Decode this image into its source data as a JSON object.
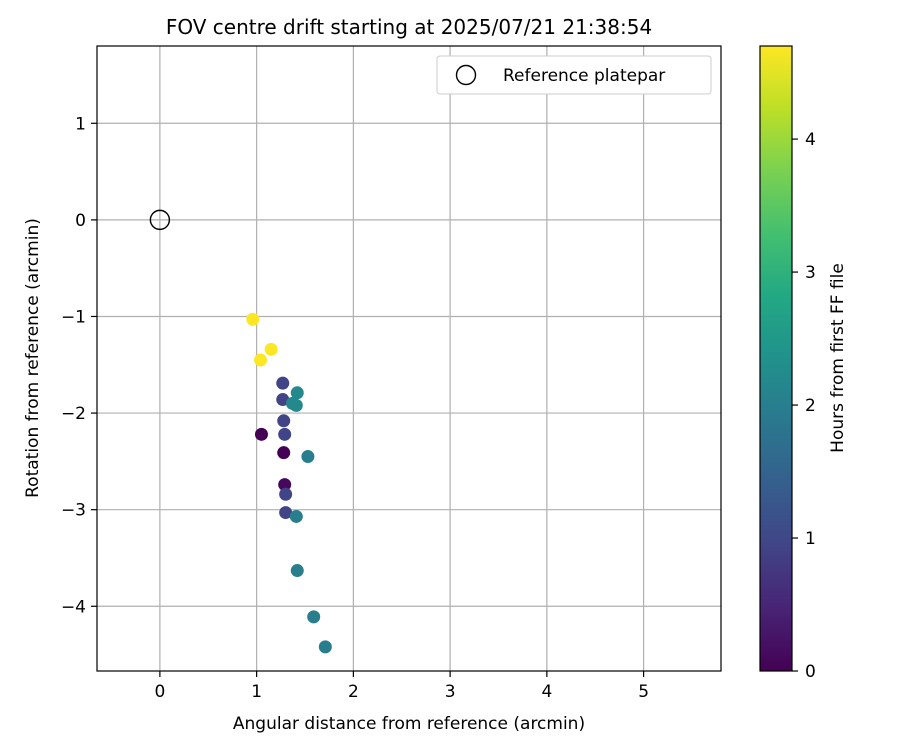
{
  "chart_data": {
    "type": "scatter",
    "title": "FOV centre drift starting at 2025/07/21 21:38:54",
    "xlabel": "Angular distance from reference (arcmin)",
    "ylabel": "Rotation from reference (arcmin)",
    "xlim": [
      -0.65,
      5.8
    ],
    "ylim": [
      -4.67,
      1.8
    ],
    "x_ticks": [
      0,
      1,
      2,
      3,
      4,
      5
    ],
    "y_ticks": [
      -4,
      -3,
      -2,
      -1,
      0,
      1
    ],
    "grid": true,
    "legend": {
      "placement": "top-right",
      "entries": [
        "Reference platepar"
      ]
    },
    "reference": {
      "name": "Reference platepar",
      "x": 0,
      "y": 0,
      "marker": "open-circle"
    },
    "colorbar": {
      "label": "Hours from first FF file",
      "range": [
        0,
        4.7
      ],
      "ticks": [
        0,
        1,
        2,
        3,
        4
      ],
      "colormap": "viridis"
    },
    "points": [
      {
        "x": 1.05,
        "y": -2.22,
        "hours": 0.0
      },
      {
        "x": 1.28,
        "y": -2.41,
        "hours": 0.0
      },
      {
        "x": 1.29,
        "y": -2.74,
        "hours": 0.1
      },
      {
        "x": 1.27,
        "y": -1.69,
        "hours": 0.95
      },
      {
        "x": 1.27,
        "y": -1.86,
        "hours": 0.95
      },
      {
        "x": 1.28,
        "y": -2.08,
        "hours": 0.95
      },
      {
        "x": 1.29,
        "y": -2.22,
        "hours": 0.95
      },
      {
        "x": 1.3,
        "y": -2.84,
        "hours": 0.95
      },
      {
        "x": 1.3,
        "y": -3.03,
        "hours": 0.95
      },
      {
        "x": 1.42,
        "y": -1.79,
        "hours": 2.2
      },
      {
        "x": 1.37,
        "y": -1.9,
        "hours": 2.2
      },
      {
        "x": 1.41,
        "y": -1.92,
        "hours": 2.2
      },
      {
        "x": 1.53,
        "y": -2.45,
        "hours": 2.0
      },
      {
        "x": 1.41,
        "y": -3.07,
        "hours": 2.0
      },
      {
        "x": 1.42,
        "y": -3.63,
        "hours": 2.0
      },
      {
        "x": 1.59,
        "y": -4.11,
        "hours": 2.0
      },
      {
        "x": 1.71,
        "y": -4.42,
        "hours": 2.0
      },
      {
        "x": 0.96,
        "y": -1.03,
        "hours": 4.7
      },
      {
        "x": 1.15,
        "y": -1.34,
        "hours": 4.7
      },
      {
        "x": 1.04,
        "y": -1.45,
        "hours": 4.7
      }
    ]
  }
}
